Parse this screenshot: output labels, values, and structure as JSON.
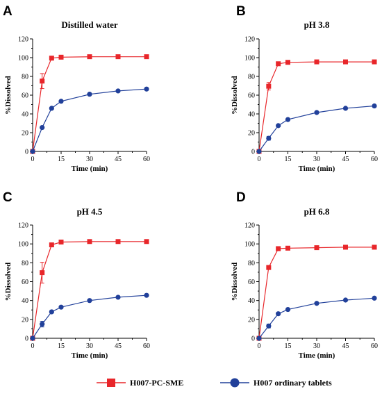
{
  "colors": {
    "sme": "#e8262a",
    "tablets": "#21409a",
    "axis": "#000000"
  },
  "legend": {
    "sme_label": "H007-PC-SME",
    "tablets_label": "H007 ordinary tablets",
    "sme_marker": "square",
    "tablets_marker": "circle",
    "placement": "bottom-center"
  },
  "chart_data": [
    {
      "type": "line",
      "panel": "A",
      "title": "Distilled water",
      "xlabel": "Time (min)",
      "ylabel": "%Dissolved",
      "x": [
        0,
        5,
        10,
        15,
        30,
        45,
        60
      ],
      "xlim": [
        0,
        60
      ],
      "ylim": [
        0,
        120
      ],
      "xticks": [
        0,
        15,
        30,
        45,
        60
      ],
      "yticks": [
        0,
        20,
        40,
        60,
        80,
        100,
        120
      ],
      "grid": false,
      "legend": "bottom-center",
      "series": [
        {
          "name": "H007-PC-SME",
          "values": [
            0,
            75,
            99.5,
            100.5,
            101,
            101,
            101
          ],
          "errors": [
            0,
            8,
            1,
            0.5,
            0.5,
            0.5,
            0.5
          ]
        },
        {
          "name": "H007 ordinary tablets",
          "values": [
            0,
            25.5,
            46,
            53.5,
            61,
            64.5,
            66.5
          ],
          "errors": [
            0,
            1,
            1,
            1,
            1,
            1,
            1
          ]
        }
      ]
    },
    {
      "type": "line",
      "panel": "B",
      "title": "pH 3.8",
      "xlabel": "Time (min)",
      "ylabel": "%Dissolved",
      "x": [
        0,
        5,
        10,
        15,
        30,
        45,
        60
      ],
      "xlim": [
        0,
        60
      ],
      "ylim": [
        0,
        120
      ],
      "xticks": [
        0,
        15,
        30,
        45,
        60
      ],
      "yticks": [
        0,
        20,
        40,
        60,
        80,
        100,
        120
      ],
      "grid": false,
      "legend": "bottom-center",
      "series": [
        {
          "name": "H007-PC-SME",
          "values": [
            0,
            69.5,
            93.5,
            95,
            95.5,
            95.5,
            95.5
          ],
          "errors": [
            0,
            4,
            1,
            0.5,
            0.5,
            0.5,
            0.5
          ]
        },
        {
          "name": "H007 ordinary tablets",
          "values": [
            0,
            14,
            27.5,
            34,
            41.5,
            46,
            48.5
          ],
          "errors": [
            0,
            2,
            1,
            1,
            1,
            1,
            1
          ]
        }
      ]
    },
    {
      "type": "line",
      "panel": "C",
      "title": "pH 4.5",
      "xlabel": "Time (min)",
      "ylabel": "%Dissolved",
      "x": [
        0,
        5,
        10,
        15,
        30,
        45,
        60
      ],
      "xlim": [
        0,
        60
      ],
      "ylim": [
        0,
        120
      ],
      "xticks": [
        0,
        15,
        30,
        45,
        60
      ],
      "yticks": [
        0,
        20,
        40,
        60,
        80,
        100,
        120
      ],
      "grid": false,
      "legend": "bottom-center",
      "series": [
        {
          "name": "H007-PC-SME",
          "values": [
            0,
            69.5,
            99,
            102,
            102.5,
            102.5,
            102.5
          ],
          "errors": [
            0,
            11,
            2,
            0.5,
            0.5,
            0.5,
            0.5
          ]
        },
        {
          "name": "H007 ordinary tablets",
          "values": [
            0,
            15,
            28,
            33,
            40,
            43.5,
            45.5
          ],
          "errors": [
            0,
            3,
            1,
            1,
            1,
            1,
            1
          ]
        }
      ]
    },
    {
      "type": "line",
      "panel": "D",
      "title": "pH 6.8",
      "xlabel": "Time (min)",
      "ylabel": "%Dissolved",
      "x": [
        0,
        5,
        10,
        15,
        30,
        45,
        60
      ],
      "xlim": [
        0,
        60
      ],
      "ylim": [
        0,
        120
      ],
      "xticks": [
        0,
        15,
        30,
        45,
        60
      ],
      "yticks": [
        0,
        20,
        40,
        60,
        80,
        100,
        120
      ],
      "grid": false,
      "legend": "bottom-center",
      "series": [
        {
          "name": "H007-PC-SME",
          "values": [
            0,
            75,
            95,
            95.5,
            96,
            96.5,
            96.5
          ],
          "errors": [
            0,
            2,
            1,
            0.5,
            0.5,
            0.5,
            0.5
          ]
        },
        {
          "name": "H007 ordinary tablets",
          "values": [
            0,
            13,
            26,
            30.5,
            37,
            40.5,
            42.5
          ],
          "errors": [
            0,
            2,
            1,
            1,
            1,
            1,
            1
          ]
        }
      ]
    }
  ]
}
